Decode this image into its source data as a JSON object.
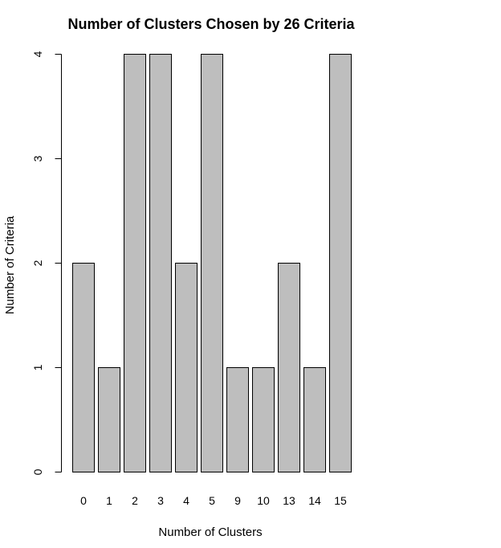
{
  "chart_data": {
    "type": "bar",
    "title": "Number of Clusters Chosen by 26 Criteria",
    "xlabel": "Number of Clusters",
    "ylabel": "Number of Criteria",
    "categories": [
      "0",
      "1",
      "2",
      "3",
      "4",
      "5",
      "9",
      "10",
      "13",
      "14",
      "15"
    ],
    "values": [
      2,
      1,
      4,
      4,
      2,
      4,
      1,
      1,
      2,
      1,
      4
    ],
    "ylim": [
      0,
      4
    ],
    "yticks": [
      "0",
      "1",
      "2",
      "3",
      "4"
    ],
    "grid": false,
    "legend": "none",
    "bar_color": "#bebebe",
    "bar_border_color": "#000000"
  }
}
